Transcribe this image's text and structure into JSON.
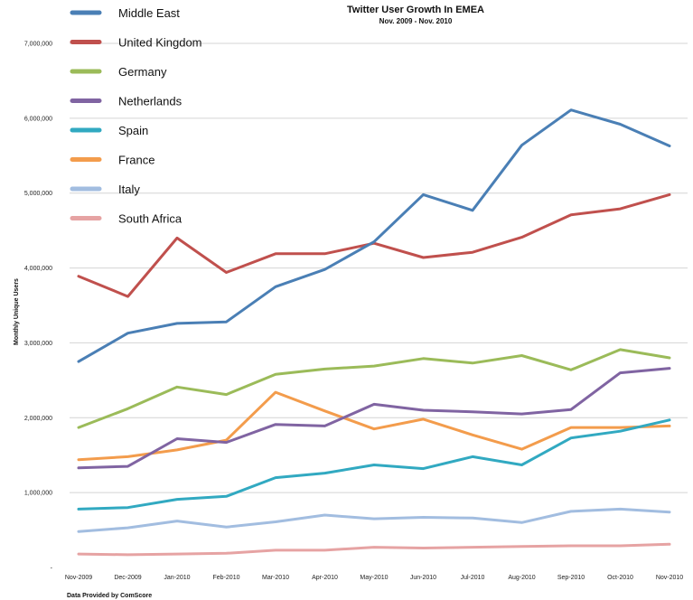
{
  "chart_data": {
    "type": "line",
    "title": "Twitter User Growth In EMEA",
    "subtitle": "Nov. 2009 - Nov. 2010",
    "ylabel": "Monthly Unique Users",
    "source": "Data Provided by ComScore",
    "legend_position": "top-left",
    "grid": true,
    "ylim": [
      0,
      7000000
    ],
    "y_ticks": [
      "-",
      "1,000,000",
      "2,000,000",
      "3,000,000",
      "4,000,000",
      "5,000,000",
      "6,000,000",
      "7,000,000"
    ],
    "categories": [
      "Nov-2009",
      "Dec-2009",
      "Jan-2010",
      "Feb-2010",
      "Mar-2010",
      "Apr-2010",
      "May-2010",
      "Jun-2010",
      "Jul-2010",
      "Aug-2010",
      "Sep-2010",
      "Oct-2010",
      "Nov-2010"
    ],
    "series": [
      {
        "name": "Middle East",
        "color": "#4a7fb5",
        "values": [
          2750000,
          3130000,
          3260000,
          3280000,
          3750000,
          3980000,
          4350000,
          4980000,
          4770000,
          5640000,
          6110000,
          5920000,
          5630000
        ]
      },
      {
        "name": "United Kingdom",
        "color": "#c0504d",
        "values": [
          3890000,
          3620000,
          4400000,
          3940000,
          4190000,
          4190000,
          4330000,
          4140000,
          4210000,
          4410000,
          4710000,
          4790000,
          4980000
        ]
      },
      {
        "name": "Germany",
        "color": "#9bbb59",
        "values": [
          1870000,
          2120000,
          2410000,
          2310000,
          2580000,
          2650000,
          2690000,
          2790000,
          2730000,
          2830000,
          2640000,
          2910000,
          2800000
        ]
      },
      {
        "name": "Netherlands",
        "color": "#8064a2",
        "values": [
          1330000,
          1350000,
          1720000,
          1670000,
          1910000,
          1890000,
          2180000,
          2100000,
          2080000,
          2050000,
          2110000,
          2600000,
          2660000
        ]
      },
      {
        "name": "Spain",
        "color": "#31a9c1",
        "values": [
          780000,
          800000,
          910000,
          950000,
          1200000,
          1260000,
          1370000,
          1320000,
          1480000,
          1370000,
          1730000,
          1820000,
          1970000
        ]
      },
      {
        "name": "France",
        "color": "#f39c4c",
        "values": [
          1440000,
          1480000,
          1570000,
          1700000,
          2340000,
          2090000,
          1850000,
          1980000,
          1770000,
          1580000,
          1870000,
          1870000,
          1890000
        ]
      },
      {
        "name": "Italy",
        "color": "#a2bde0",
        "values": [
          480000,
          530000,
          620000,
          540000,
          610000,
          700000,
          650000,
          670000,
          660000,
          600000,
          750000,
          780000,
          740000
        ]
      },
      {
        "name": "South Africa",
        "color": "#e6a3a3",
        "values": [
          180000,
          170000,
          180000,
          190000,
          230000,
          230000,
          270000,
          260000,
          270000,
          280000,
          290000,
          290000,
          310000
        ]
      }
    ]
  }
}
